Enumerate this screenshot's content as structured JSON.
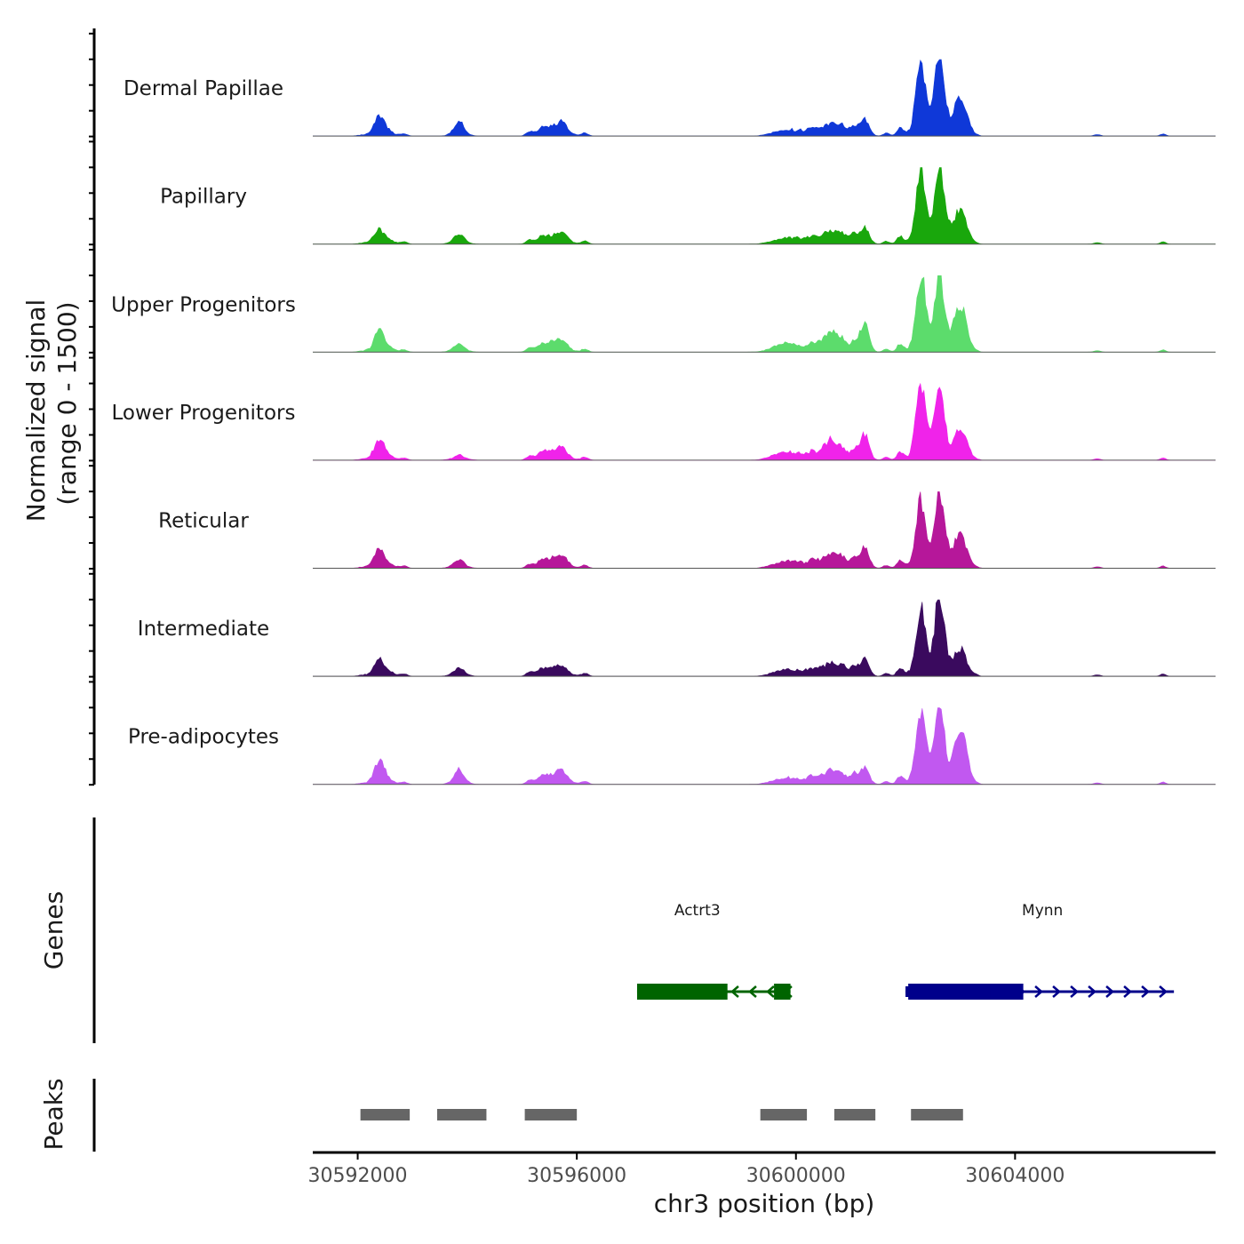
{
  "chart_data": {
    "type": "area",
    "ylabel_line1": "Normalized signal",
    "ylabel_line2": "(range 0 - 1500)",
    "y_range": [
      0,
      1500
    ],
    "xlabel": "chr3 position (bp)",
    "x_range": [
      30591180,
      30607660
    ],
    "x_ticks": [
      30592000,
      30596000,
      30600000,
      30604000
    ],
    "x_tick_labels": [
      "30592000",
      "30596000",
      "30600000",
      "30604000"
    ],
    "peak_centers": [
      30592400,
      30593850,
      30595550,
      30595750,
      30599800,
      30600650,
      30601250,
      30602280,
      30602620,
      30603000
    ],
    "peak_widths": [
      90,
      90,
      140,
      90,
      220,
      130,
      80,
      85,
      85,
      110
    ],
    "background": [
      {
        "start": 30591900,
        "end": 30592900,
        "level": 0.06
      },
      {
        "start": 30593500,
        "end": 30594200,
        "level": 0.03
      },
      {
        "start": 30595000,
        "end": 30596200,
        "level": 0.05
      },
      {
        "start": 30599300,
        "end": 30601500,
        "level": 0.1
      },
      {
        "start": 30601800,
        "end": 30603400,
        "level": 0.16
      }
    ],
    "small_bumps": [
      {
        "center": 30592600,
        "width": 60,
        "level": 0.03
      },
      {
        "center": 30592850,
        "width": 60,
        "level": 0.03
      },
      {
        "center": 30595150,
        "width": 70,
        "level": 0.05
      },
      {
        "center": 30595350,
        "width": 70,
        "level": 0.06
      },
      {
        "center": 30596150,
        "width": 60,
        "level": 0.04
      },
      {
        "center": 30600300,
        "width": 70,
        "level": 0.04
      },
      {
        "center": 30600850,
        "width": 70,
        "level": 0.08
      },
      {
        "center": 30601050,
        "width": 60,
        "level": 0.12
      },
      {
        "center": 30601650,
        "width": 60,
        "level": 0.04
      },
      {
        "center": 30601900,
        "width": 60,
        "level": 0.1
      },
      {
        "center": 30605500,
        "width": 60,
        "level": 0.02
      },
      {
        "center": 30606700,
        "width": 50,
        "level": 0.03
      }
    ],
    "series": [
      {
        "name": "Dermal Papillae",
        "color": "#0f38d8",
        "peak_heights": [
          0.25,
          0.18,
          0.1,
          0.12,
          0.05,
          0.12,
          0.22,
          0.95,
          1.0,
          0.5
        ]
      },
      {
        "name": "Papillary",
        "color": "#19a70c",
        "peak_heights": [
          0.15,
          0.12,
          0.08,
          0.1,
          0.05,
          0.12,
          0.22,
          0.95,
          1.0,
          0.4
        ]
      },
      {
        "name": "Upper Progenitors",
        "color": "#5cdc6c",
        "peak_heights": [
          0.25,
          0.1,
          0.1,
          0.1,
          0.08,
          0.22,
          0.38,
          1.0,
          0.95,
          0.6
        ]
      },
      {
        "name": "Lower Progenitors",
        "color": "#f023ea",
        "peak_heights": [
          0.25,
          0.05,
          0.1,
          0.1,
          0.08,
          0.22,
          0.35,
          1.0,
          0.9,
          0.4
        ]
      },
      {
        "name": "Reticular",
        "color": "#b6179a",
        "peak_heights": [
          0.22,
          0.1,
          0.1,
          0.1,
          0.06,
          0.15,
          0.28,
          0.85,
          1.0,
          0.4
        ]
      },
      {
        "name": "Intermediate",
        "color": "#3a0a5e",
        "peak_heights": [
          0.18,
          0.1,
          0.08,
          0.08,
          0.05,
          0.12,
          0.22,
          0.85,
          1.0,
          0.32
        ]
      },
      {
        "name": "Pre-adipocytes",
        "color": "#c158f0",
        "peak_heights": [
          0.3,
          0.18,
          0.1,
          0.12,
          0.05,
          0.15,
          0.22,
          0.95,
          1.0,
          0.75
        ]
      }
    ],
    "genes_title": "Genes",
    "genes": [
      {
        "name": "Actrt3",
        "color": "#006400",
        "strand": "-",
        "start": 30597100,
        "end": 30599900,
        "label_pos": 30598200,
        "exons": [
          [
            30597100,
            30598750
          ],
          [
            30599600,
            30599900
          ]
        ]
      },
      {
        "name": "Mynn",
        "color": "#00008b",
        "strand": "+",
        "start": 30602000,
        "end": 30606900,
        "label_pos": 30604500,
        "exons": [
          [
            30602050,
            30604150
          ],
          [
            30603550,
            30603850
          ]
        ],
        "utr": [
          [
            30602000,
            30602060
          ]
        ]
      }
    ],
    "peaks_title": "Peaks",
    "peak_regions": [
      [
        30592050,
        30592950
      ],
      [
        30593450,
        30594350
      ],
      [
        30595050,
        30596000
      ],
      [
        30599350,
        30600200
      ],
      [
        30600700,
        30601450
      ],
      [
        30602100,
        30603050
      ]
    ]
  }
}
